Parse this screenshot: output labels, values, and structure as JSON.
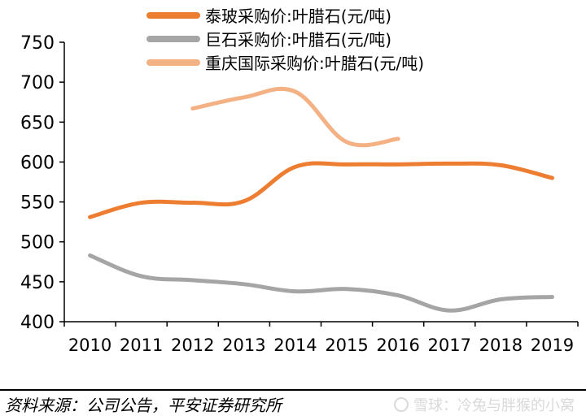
{
  "chart_data": {
    "type": "line",
    "x": [
      "2010",
      "2011",
      "2012",
      "2013",
      "2014",
      "2015",
      "2016",
      "2017",
      "2018",
      "2019"
    ],
    "ylim": [
      400,
      750
    ],
    "yticks": [
      400,
      450,
      500,
      550,
      600,
      650,
      700,
      750
    ],
    "grid": false,
    "legend_position": "top",
    "series": [
      {
        "name": "泰玻采购价:叶腊石(元/吨)",
        "color": "#ED7D31",
        "values": [
          531,
          549,
          549,
          551,
          594,
          597,
          597,
          598,
          596,
          580
        ]
      },
      {
        "name": "巨石采购价:叶腊石(元/吨)",
        "color": "#A5A5A5",
        "values": [
          483,
          457,
          452,
          447,
          438,
          441,
          433,
          414,
          428,
          431
        ]
      },
      {
        "name": "重庆国际采购价:叶腊石(元/吨)",
        "color": "#F4B183",
        "values": [
          null,
          null,
          667,
          681,
          688,
          625,
          629,
          null,
          null,
          null
        ]
      }
    ]
  },
  "footer": {
    "source": "资料来源：公司公告，平安证券研究所",
    "watermark": "雪球：冷兔与胖猴的小窝"
  }
}
